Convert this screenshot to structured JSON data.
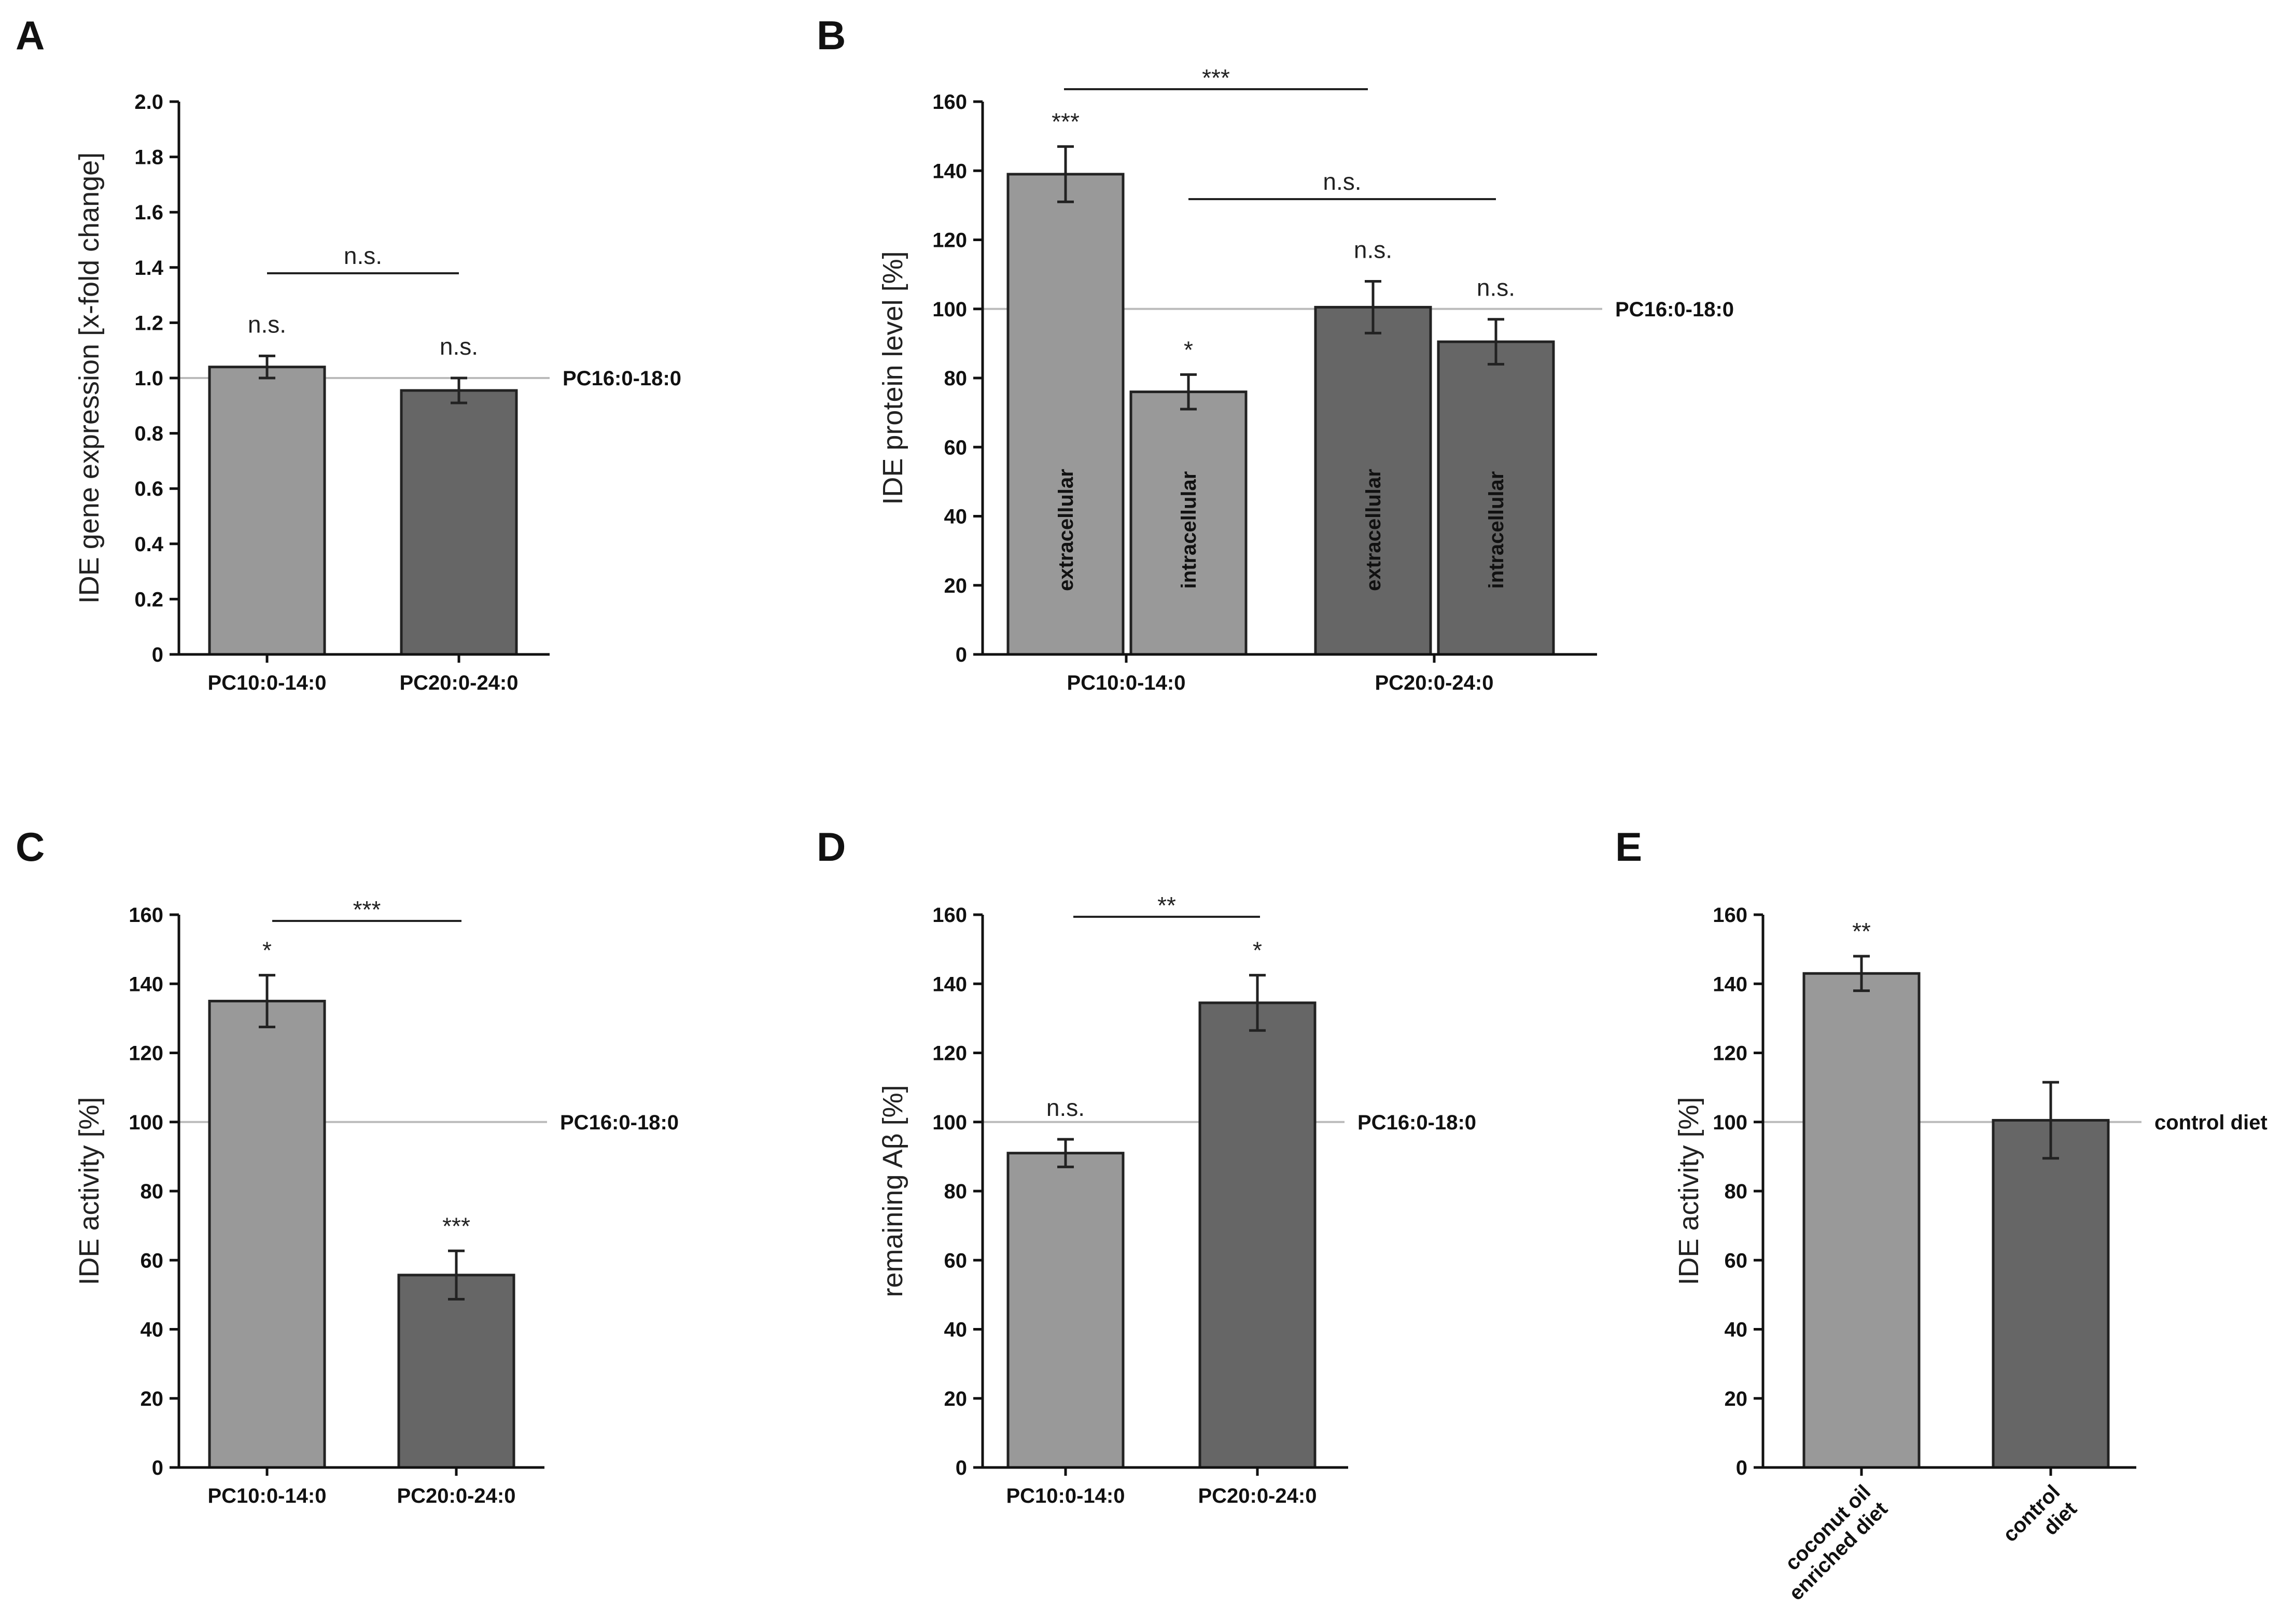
{
  "colors": {
    "light_bar": "#999999",
    "dark_bar": "#666666",
    "ref_line": "#bbbbbb",
    "axis": "#111111"
  },
  "chart_data": [
    {
      "panel": "A",
      "type": "bar",
      "ylabel": "IDE gene expression  [x-fold change]",
      "ylim": [
        0,
        2.0
      ],
      "yticks": [
        "0",
        "0.2",
        "0.4",
        "0.6",
        "0.8",
        "1.0",
        "1.2",
        "1.4",
        "1.6",
        "1.8",
        "2.0"
      ],
      "categories": [
        "PC10:0-14:0",
        "PC20:0-24:0"
      ],
      "values": [
        1.04,
        0.955
      ],
      "errors": [
        0.04,
        0.045
      ],
      "bar_colors": [
        "light",
        "dark"
      ],
      "above_bar": [
        "n.s.",
        "n.s."
      ],
      "reference": {
        "value": 1.0,
        "label": "PC16:0-18:0"
      },
      "brackets": [
        {
          "label": "n.s."
        }
      ]
    },
    {
      "panel": "B",
      "type": "bar",
      "ylabel": "IDE protein level  [%]",
      "ylim": [
        0,
        160
      ],
      "yticks": [
        "0",
        "20",
        "40",
        "60",
        "80",
        "100",
        "120",
        "140",
        "160"
      ],
      "categories": [
        "PC10:0-14:0",
        "PC20:0-24:0"
      ],
      "series": [
        {
          "name": "extracellular",
          "values": [
            139,
            100.5
          ],
          "errors": [
            8,
            7.5
          ]
        },
        {
          "name": "intracellular",
          "values": [
            76,
            90.5
          ],
          "errors": [
            5,
            6.5
          ]
        }
      ],
      "bar_colors": [
        "light",
        "light",
        "dark",
        "dark"
      ],
      "above_bar": [
        "***",
        "*",
        "n.s.",
        "n.s."
      ],
      "reference": {
        "value": 100,
        "label": "PC16:0-18:0"
      },
      "brackets": [
        {
          "label": "***"
        },
        {
          "label": "n.s."
        }
      ]
    },
    {
      "panel": "C",
      "type": "bar",
      "ylabel": "IDE activity [%]",
      "ylim": [
        0,
        160
      ],
      "yticks": [
        "0",
        "20",
        "40",
        "60",
        "80",
        "100",
        "120",
        "140",
        "160"
      ],
      "categories": [
        "PC10:0-14:0",
        "PC20:0-24:0"
      ],
      "values": [
        135,
        55.7
      ],
      "errors": [
        7.5,
        7
      ],
      "bar_colors": [
        "light",
        "dark"
      ],
      "above_bar": [
        "*",
        "***"
      ],
      "reference": {
        "value": 100,
        "label": "PC16:0-18:0"
      },
      "brackets": [
        {
          "label": "***"
        }
      ]
    },
    {
      "panel": "D",
      "type": "bar",
      "ylabel": "remaining Aβ [%]",
      "ylim": [
        0,
        160
      ],
      "yticks": [
        "0",
        "20",
        "40",
        "60",
        "80",
        "100",
        "120",
        "140",
        "160"
      ],
      "categories": [
        "PC10:0-14:0",
        "PC20:0-24:0"
      ],
      "values": [
        91,
        134.5
      ],
      "errors": [
        4,
        8
      ],
      "bar_colors": [
        "light",
        "dark"
      ],
      "above_bar": [
        "n.s.",
        "*"
      ],
      "reference": {
        "value": 100,
        "label": "PC16:0-18:0"
      },
      "brackets": [
        {
          "label": "**"
        }
      ]
    },
    {
      "panel": "E",
      "type": "bar",
      "ylabel": "IDE activity [%]",
      "ylim": [
        0,
        160
      ],
      "yticks": [
        "0",
        "20",
        "40",
        "60",
        "80",
        "100",
        "120",
        "140",
        "160"
      ],
      "categories": [
        [
          "coconut oil",
          "enriched diet"
        ],
        [
          "control",
          "diet"
        ]
      ],
      "values": [
        143,
        100.5
      ],
      "errors": [
        5,
        11
      ],
      "bar_colors": [
        "light",
        "dark"
      ],
      "above_bar": [
        "**",
        ""
      ],
      "reference": {
        "value": 100,
        "label": "control diet"
      },
      "brackets": []
    }
  ]
}
